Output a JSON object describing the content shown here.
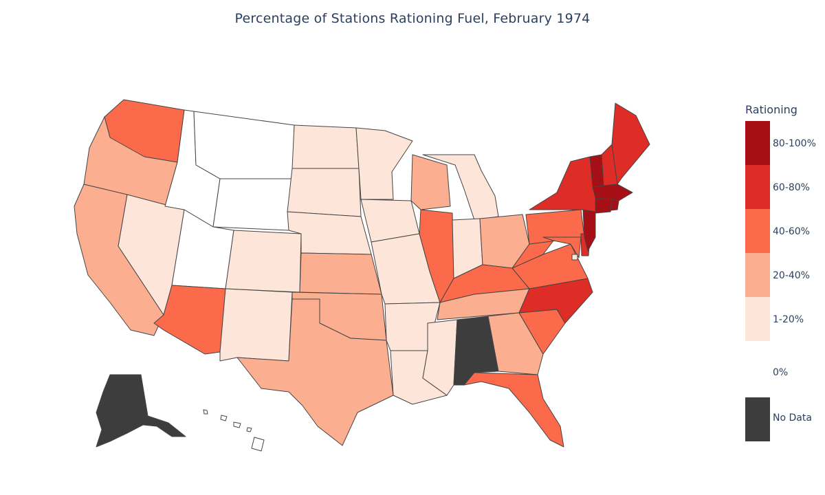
{
  "title": "Percentage of Stations Rationing Fuel, February 1974",
  "colors": {
    "80-100%": "#a50f15",
    "60-80%": "#de2d26",
    "40-60%": "#fb6a4a",
    "20-40%": "#fcae91",
    "1-20%": "#fee5d9",
    "0%": "#ffffff",
    "No Data": "#3d3d3d"
  },
  "legend": {
    "title": "Rationing",
    "items": [
      {
        "label": "80-100%",
        "color": "#a50f15"
      },
      {
        "label": "60-80%",
        "color": "#de2d26"
      },
      {
        "label": "40-60%",
        "color": "#fb6a4a"
      },
      {
        "label": "20-40%",
        "color": "#fcae91"
      },
      {
        "label": "1-20%",
        "color": "#fee5d9"
      },
      {
        "label": "0%",
        "color": "#ffffff"
      },
      {
        "label": "No Data",
        "color": "#3d3d3d"
      }
    ]
  },
  "states": {
    "WA": "40-60%",
    "OR": "20-40%",
    "CA": "20-40%",
    "NV": "1-20%",
    "ID": "0%",
    "MT": "0%",
    "WY": "0%",
    "UT": "0%",
    "AZ": "40-60%",
    "CO": "1-20%",
    "NM": "1-20%",
    "ND": "1-20%",
    "SD": "1-20%",
    "NE": "1-20%",
    "KS": "20-40%",
    "OK": "20-40%",
    "TX": "20-40%",
    "MN": "1-20%",
    "IA": "1-20%",
    "MO": "1-20%",
    "AR": "1-20%",
    "LA": "1-20%",
    "WI": "20-40%",
    "IL": "40-60%",
    "MI": "1-20%",
    "IN": "1-20%",
    "OH": "20-40%",
    "KY": "40-60%",
    "TN": "20-40%",
    "MS": "1-20%",
    "AL": "No Data",
    "GA": "20-40%",
    "FL": "40-60%",
    "SC": "40-60%",
    "NC": "60-80%",
    "VA": "40-60%",
    "WV": "40-60%",
    "PA": "40-60%",
    "NY": "60-80%",
    "NJ": "80-100%",
    "DE": "60-80%",
    "MD": "40-60%",
    "DC": "1-20%",
    "VT": "80-100%",
    "NH": "60-80%",
    "ME": "60-80%",
    "MA": "80-100%",
    "CT": "80-100%",
    "RI": "80-100%",
    "AK": "No Data",
    "HI": "0%"
  }
}
